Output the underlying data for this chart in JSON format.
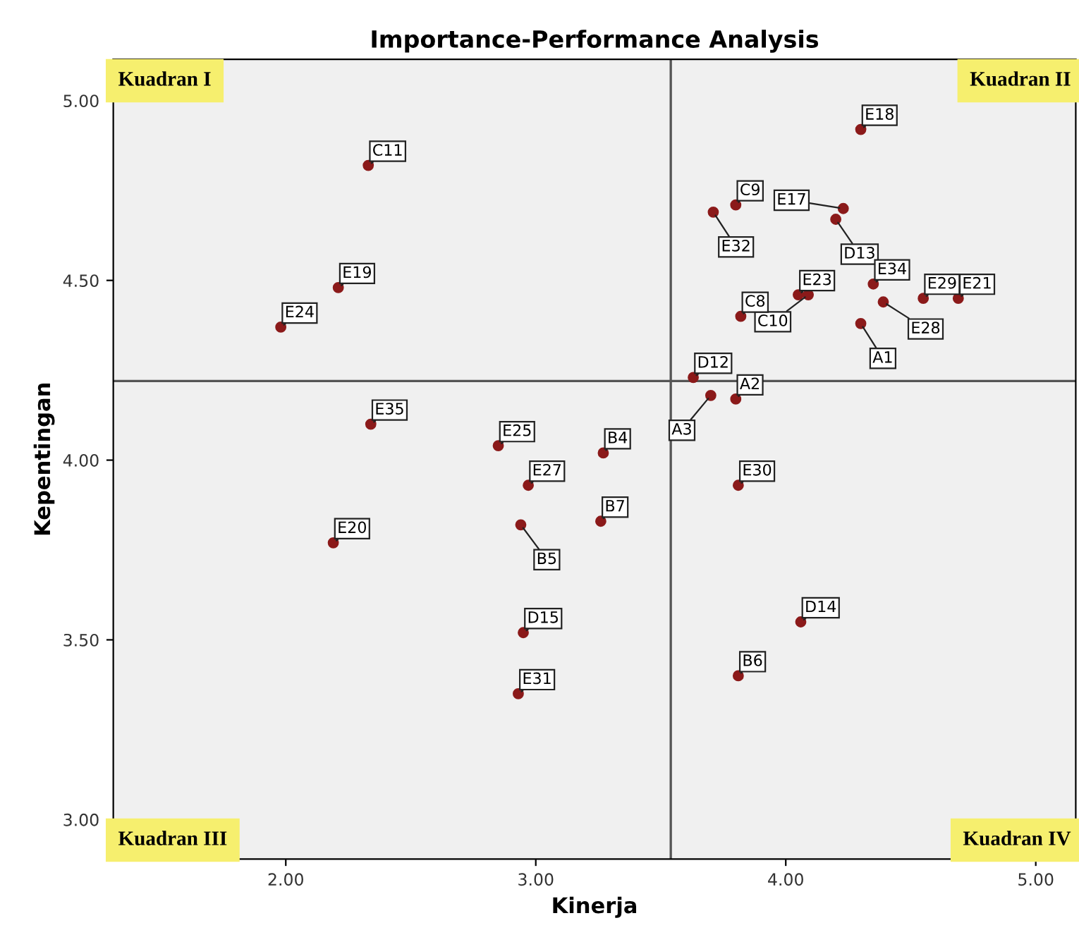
{
  "chart_data": {
    "type": "scatter",
    "title": "Importance-Performance Analysis",
    "xlabel": "Kinerja",
    "ylabel": "Kepentingan",
    "xlim": [
      1.31,
      5.16
    ],
    "ylim": [
      2.89,
      5.115
    ],
    "xticks": [
      {
        "value": 2,
        "label": "2.00"
      },
      {
        "value": 3,
        "label": "3.00"
      },
      {
        "value": 4,
        "label": "4.00"
      },
      {
        "value": 5,
        "label": "5.00"
      }
    ],
    "yticks": [
      {
        "value": 3,
        "label": "3.00"
      },
      {
        "value": 3.5,
        "label": "3.50"
      },
      {
        "value": 4,
        "label": "4.00"
      },
      {
        "value": 4.5,
        "label": "4.50"
      },
      {
        "value": 5,
        "label": "5.00"
      }
    ],
    "grid": false,
    "legend": false,
    "marker": "circle",
    "ref_lines": [
      {
        "axis": "x",
        "value": 3.54,
        "label": null,
        "color": "#555555"
      },
      {
        "axis": "y",
        "value": 4.22,
        "label": null,
        "color": "#555555"
      }
    ],
    "annotations": [
      "Kuadran I",
      "Kuadran II",
      "Kuadran III",
      "Kuadran IV"
    ],
    "series": [
      {
        "color": "#8b1a1a",
        "x": [
          2.33,
          2.21,
          1.98,
          2.34,
          2.85,
          2.97,
          2.19,
          2.94,
          2.95,
          2.93,
          3.27,
          3.26,
          3.7,
          3.8,
          3.81,
          4.06,
          3.81,
          4.3,
          3.8,
          3.71,
          4.23,
          4.2,
          4.05,
          4.09,
          3.82,
          4.35,
          4.39,
          4.55,
          4.69,
          3.63,
          4.3
        ],
        "values": [
          4.82,
          4.48,
          4.37,
          4.1,
          4.04,
          3.93,
          3.77,
          3.82,
          3.52,
          3.35,
          4.02,
          3.83,
          4.18,
          4.17,
          3.93,
          3.55,
          3.4,
          4.92,
          4.71,
          4.69,
          4.7,
          4.67,
          4.46,
          4.46,
          4.4,
          4.49,
          4.44,
          4.45,
          4.45,
          4.23,
          4.38
        ],
        "value_labels": [
          "C11",
          "E19",
          "E24",
          "E35",
          "E25",
          "E27",
          "E20",
          "B5",
          "D15",
          "E31",
          "B4",
          "B7",
          "A3",
          "A2",
          "E30",
          "D14",
          "B6",
          "E18",
          "C9",
          "E32",
          "E17",
          "D13",
          "E23",
          "C10",
          "C8",
          "E34",
          "E28",
          "E29",
          "E21",
          "D12",
          "A1"
        ]
      }
    ]
  }
}
